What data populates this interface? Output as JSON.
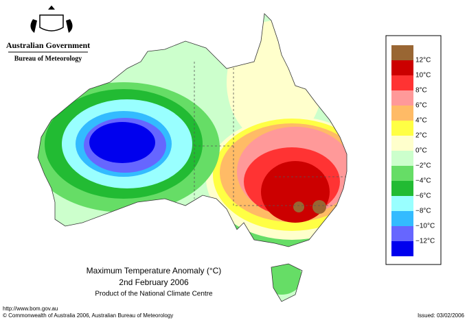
{
  "header": {
    "government": "Australian Government",
    "agency": "Bureau of Meteorology"
  },
  "caption": {
    "title": "Maximum Temperature Anomaly (°C)",
    "date": "2nd February 2006",
    "product": "Product of the National Climate Centre"
  },
  "legend": {
    "colors": [
      "#996633",
      "#cc0000",
      "#ff3333",
      "#ff9999",
      "#ffbb66",
      "#ffff44",
      "#ffffcc",
      "#ccffcc",
      "#66dd66",
      "#22bb33",
      "#99ffff",
      "#33bbff",
      "#6666ff",
      "#0000ee"
    ],
    "labels": [
      "12°C",
      "10°C",
      "8°C",
      "6°C",
      "4°C",
      "2°C",
      "0°C",
      "−2°C",
      "−4°C",
      "−6°C",
      "−8°C",
      "−10°C",
      "−12°C"
    ]
  },
  "footer": {
    "url": "http://www.bom.gov.au",
    "copyright": "© Commonwealth of Australia 2006, Australian Bureau of Meteorology",
    "issued": "Issued: 03/02/2006"
  }
}
